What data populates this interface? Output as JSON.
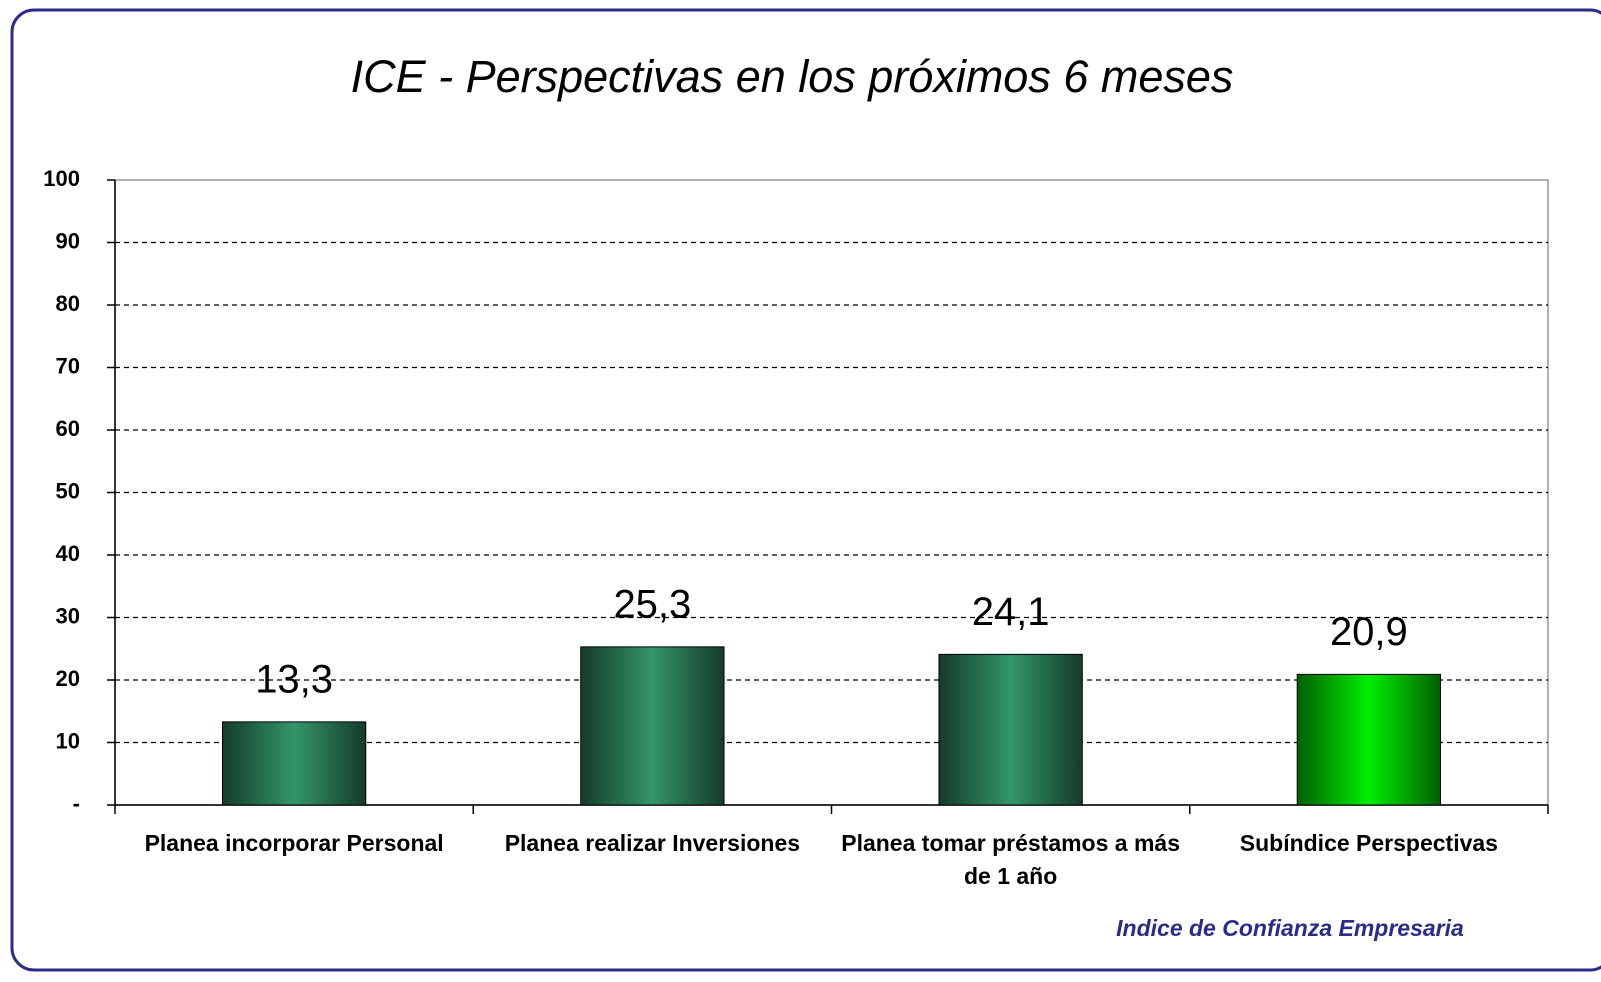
{
  "chart_data": {
    "type": "bar",
    "title": "ICE - Perspectivas en los próximos 6 meses",
    "categories": [
      "Planea incorporar Personal",
      "Planea realizar Inversiones",
      "Planea tomar préstamos a más de 1 año",
      "Subíndice Perspectivas"
    ],
    "values": [
      13.3,
      25.3,
      24.1,
      20.9
    ],
    "value_labels": [
      "13,3",
      "25,3",
      "24,1",
      "20,9"
    ],
    "colors": [
      "#33956a",
      "#33956a",
      "#33956a",
      "#00ee00"
    ],
    "ylim": [
      0,
      100
    ],
    "yticks": [
      {
        "value": 0,
        "label": "-"
      },
      10,
      20,
      30,
      40,
      50,
      60,
      70,
      80,
      90,
      100
    ],
    "grid": true,
    "annotation": "Indice de Confianza Empresaria"
  }
}
